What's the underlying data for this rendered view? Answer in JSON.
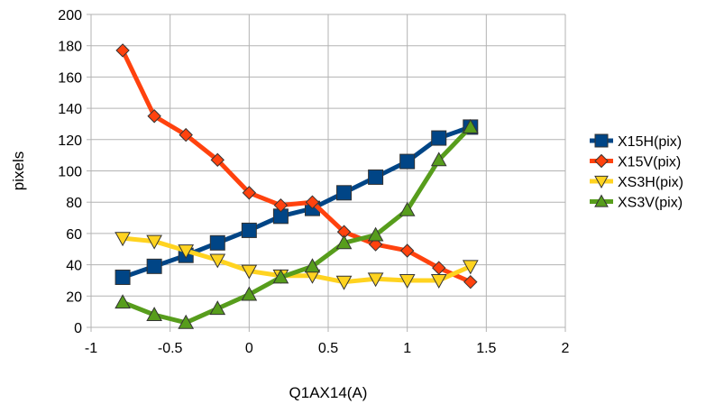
{
  "chart_data": {
    "type": "line",
    "title": "",
    "xlabel": "Q1AX14(A)",
    "ylabel": "pixels",
    "xlim": [
      -1,
      2
    ],
    "ylim": [
      0,
      200
    ],
    "xticks": [
      -1,
      -0.5,
      0,
      0.5,
      1,
      1.5,
      2
    ],
    "xtick_labels": [
      "-1",
      "-0.5",
      "0",
      "0.5",
      "1",
      "1.5",
      "2"
    ],
    "yticks": [
      0,
      20,
      40,
      60,
      80,
      100,
      120,
      140,
      160,
      180,
      200
    ],
    "ytick_labels": [
      "0",
      "20",
      "40",
      "60",
      "80",
      "100",
      "120",
      "140",
      "160",
      "180",
      "200"
    ],
    "grid": true,
    "legend_position": "right",
    "x": [
      -0.8,
      -0.6,
      -0.4,
      -0.2,
      0,
      0.2,
      0.4,
      0.6,
      0.8,
      1.0,
      1.2,
      1.4
    ],
    "series": [
      {
        "name": "X15H(pix)",
        "color": "#004586",
        "marker": "square",
        "values": [
          32,
          39,
          46,
          54,
          62,
          71,
          76,
          86,
          96,
          106,
          121,
          128
        ]
      },
      {
        "name": "X15V(pix)",
        "color": "#ff420e",
        "marker": "diamond",
        "values": [
          177,
          135,
          123,
          107,
          86,
          78,
          80,
          61,
          53,
          49,
          38,
          29
        ]
      },
      {
        "name": "XS3H(pix)",
        "color": "#ffd320",
        "marker": "triangle-down",
        "values": [
          57,
          55,
          49,
          43,
          36,
          33,
          33,
          29,
          31,
          30,
          30,
          39
        ]
      },
      {
        "name": "XS3V(pix)",
        "color": "#579d1c",
        "marker": "triangle-up",
        "values": [
          16,
          8,
          3,
          12,
          21,
          32,
          39,
          54,
          59,
          75,
          107,
          128
        ]
      }
    ]
  }
}
